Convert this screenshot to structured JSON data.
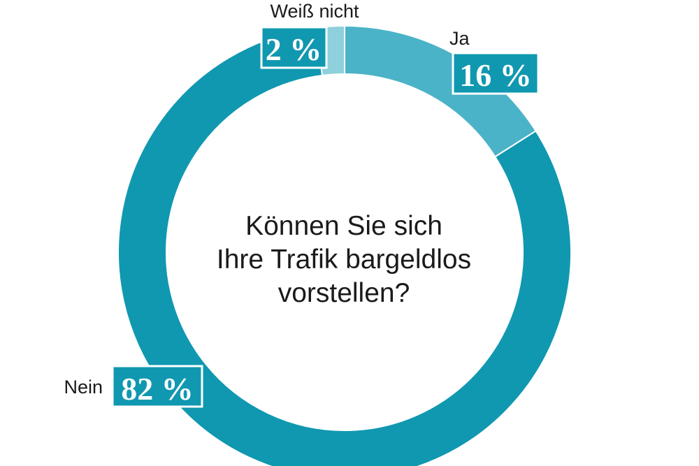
{
  "chart_data": {
    "type": "pie",
    "title_lines": [
      "Können Sie sich",
      "Ihre Trafik bargeldlos",
      "vorstellen?"
    ],
    "slices": [
      {
        "label": "Ja",
        "value": 16,
        "display": "16 %",
        "color": "#4bb3c7"
      },
      {
        "label": "Nein",
        "value": 82,
        "display": "82 %",
        "color": "#1098b0"
      },
      {
        "label": "Weiß nicht",
        "value": 2,
        "display": "2 %",
        "color": "#8ed0dc"
      }
    ]
  },
  "colors": {
    "badge": "#1098b0",
    "badge_border": "#ffffff"
  }
}
